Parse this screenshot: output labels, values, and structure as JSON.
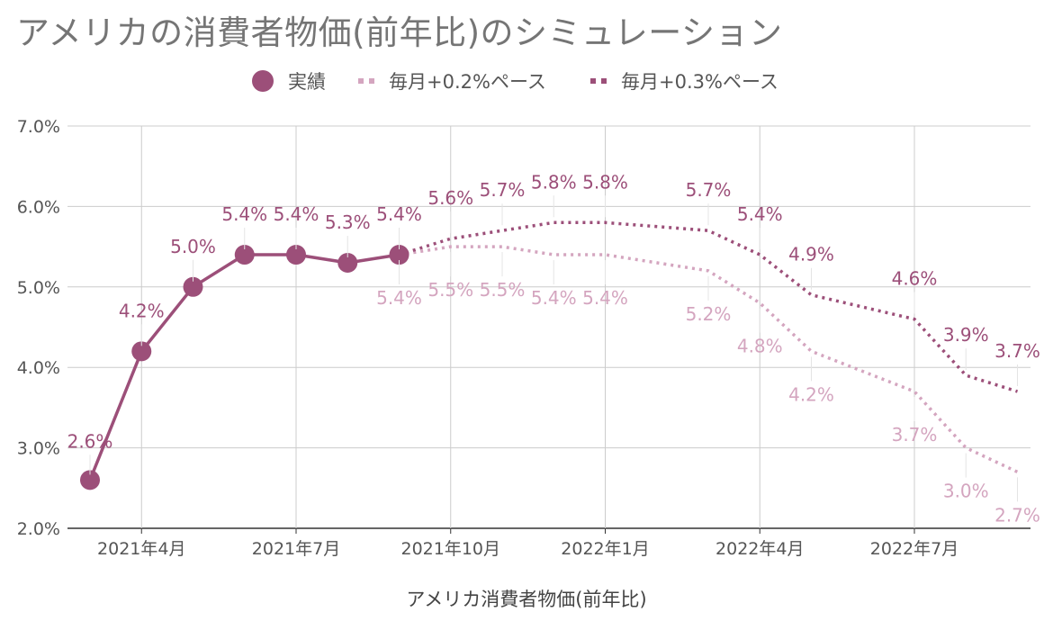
{
  "chart_data": {
    "type": "line",
    "title": "アメリカの消費者物価(前年比)のシミュレーション",
    "xlabel": "アメリカ消費者物価(前年比)",
    "ylabel": "",
    "ylim": [
      2.0,
      7.0
    ],
    "yticks": [
      "2.0%",
      "3.0%",
      "4.0%",
      "5.0%",
      "6.0%",
      "7.0%"
    ],
    "xticks": [
      {
        "label": "2021年4月",
        "month": 1
      },
      {
        "label": "2021年7月",
        "month": 4
      },
      {
        "label": "2021年10月",
        "month": 7
      },
      {
        "label": "2022年1月",
        "month": 10
      },
      {
        "label": "2022年4月",
        "month": 13
      },
      {
        "label": "2022年7月",
        "month": 16
      }
    ],
    "grid": true,
    "legend_position": "top",
    "series": [
      {
        "name": "実績",
        "style": "solid-markers",
        "color": "#9c4f79",
        "points": [
          [
            0,
            2.6
          ],
          [
            1,
            4.2
          ],
          [
            2,
            5.0
          ],
          [
            3,
            5.4
          ],
          [
            4,
            5.4
          ],
          [
            5,
            5.3
          ],
          [
            6,
            5.4
          ]
        ],
        "labels": [
          "2.6%",
          "4.2%",
          "5.0%",
          "5.4%",
          "5.4%",
          "5.3%",
          "5.4%"
        ]
      },
      {
        "name": "毎月+0.2%ペース",
        "style": "dotted",
        "color": "#d4a5bf",
        "points": [
          [
            6,
            5.4
          ],
          [
            7,
            5.5
          ],
          [
            8,
            5.5
          ],
          [
            9,
            5.4
          ],
          [
            10,
            5.4
          ],
          [
            12,
            5.2
          ],
          [
            13,
            4.8
          ],
          [
            14,
            4.2
          ],
          [
            16,
            3.7
          ],
          [
            17,
            3.0
          ],
          [
            18,
            2.7
          ]
        ],
        "labels": [
          "5.4%",
          "5.5%",
          "5.5%",
          "5.4%",
          "5.4%",
          "5.2%",
          "4.8%",
          "4.2%",
          "3.7%",
          "3.0%",
          "2.7%"
        ]
      },
      {
        "name": "毎月+0.3%ペース",
        "style": "dotted",
        "color": "#9c4f79",
        "points": [
          [
            6,
            5.4
          ],
          [
            7,
            5.6
          ],
          [
            8,
            5.7
          ],
          [
            9,
            5.8
          ],
          [
            10,
            5.8
          ],
          [
            12,
            5.7
          ],
          [
            13,
            5.4
          ],
          [
            14,
            4.9
          ],
          [
            16,
            4.6
          ],
          [
            17,
            3.9
          ],
          [
            18,
            3.7
          ]
        ],
        "labels": [
          "",
          "5.6%",
          "5.7%",
          "5.8%",
          "5.8%",
          "5.7%",
          "5.4%",
          "4.9%",
          "4.6%",
          "3.9%",
          "3.7%"
        ]
      }
    ]
  }
}
